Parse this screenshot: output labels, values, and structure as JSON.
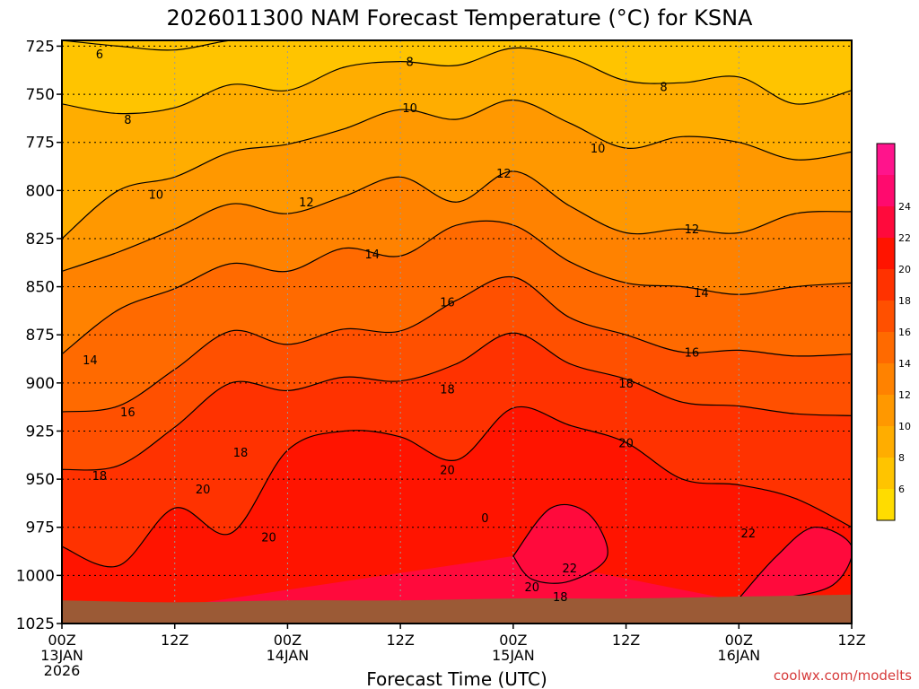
{
  "chart_data": {
    "type": "heatmap",
    "title": "2026011300 NAM Forecast Temperature (°C) for KSNA",
    "xlabel": "Forecast Time (UTC)",
    "ylabel": "",
    "credit": "coolwx.com/modelts",
    "y_ticks": [
      "725",
      "750",
      "775",
      "800",
      "825",
      "850",
      "875",
      "900",
      "925",
      "950",
      "975",
      "1000",
      "1025"
    ],
    "y_values": [
      725,
      750,
      775,
      800,
      825,
      850,
      875,
      900,
      925,
      950,
      975,
      1000,
      1025
    ],
    "ylim": [
      722,
      1025
    ],
    "x_ticks": [
      {
        "hour": 0,
        "line1": "00Z",
        "line2": "13JAN",
        "line3": "2026"
      },
      {
        "hour": 12,
        "line1": "12Z",
        "line2": "",
        "line3": ""
      },
      {
        "hour": 24,
        "line1": "00Z",
        "line2": "14JAN",
        "line3": ""
      },
      {
        "hour": 36,
        "line1": "12Z",
        "line2": "",
        "line3": ""
      },
      {
        "hour": 48,
        "line1": "00Z",
        "line2": "15JAN",
        "line3": ""
      },
      {
        "hour": 60,
        "line1": "12Z",
        "line2": "",
        "line3": ""
      },
      {
        "hour": 72,
        "line1": "00Z",
        "line2": "16JAN",
        "line3": ""
      },
      {
        "hour": 84,
        "line1": "12Z",
        "line2": "",
        "line3": ""
      }
    ],
    "xlim": [
      0,
      84
    ],
    "colorbar": {
      "levels": [
        4,
        6,
        8,
        10,
        12,
        14,
        16,
        18,
        20,
        22,
        24,
        26
      ],
      "labels": [
        "6",
        "8",
        "10",
        "12",
        "14",
        "16",
        "18",
        "20",
        "22",
        "24"
      ],
      "colors": [
        "#ffdc00",
        "#ffc400",
        "#ffad00",
        "#ff9800",
        "#ff8200",
        "#ff6a00",
        "#ff5000",
        "#ff3200",
        "#ff1400",
        "#ff0a3c",
        "#ff0a6e"
      ],
      "top_color": "#ff148c"
    },
    "series": [
      {
        "name": "6",
        "hours": [
          0,
          6,
          12,
          18,
          24,
          30,
          36,
          42,
          48,
          54,
          60,
          66,
          72,
          78,
          84
        ],
        "pressure": [
          722,
          725,
          727,
          722,
          721,
          720,
          721,
          720,
          720,
          721,
          721,
          721,
          721,
          720,
          722
        ]
      },
      {
        "name": "8",
        "hours": [
          0,
          6,
          12,
          18,
          24,
          30,
          36,
          42,
          48,
          54,
          60,
          66,
          72,
          78,
          84
        ],
        "pressure": [
          755,
          760,
          757,
          745,
          748,
          736,
          733,
          735,
          726,
          731,
          743,
          744,
          741,
          755,
          748
        ]
      },
      {
        "name": "10",
        "hours": [
          0,
          6,
          12,
          18,
          24,
          30,
          36,
          42,
          48,
          54,
          60,
          66,
          72,
          78,
          84
        ],
        "pressure": [
          825,
          800,
          793,
          780,
          776,
          768,
          758,
          763,
          753,
          765,
          778,
          772,
          775,
          784,
          780
        ]
      },
      {
        "name": "12",
        "hours": [
          0,
          6,
          12,
          18,
          24,
          30,
          36,
          42,
          48,
          54,
          60,
          66,
          72,
          78,
          84
        ],
        "pressure": [
          842,
          832,
          820,
          807,
          812,
          803,
          793,
          806,
          790,
          808,
          822,
          820,
          822,
          812,
          811
        ]
      },
      {
        "name": "14",
        "hours": [
          0,
          6,
          12,
          18,
          24,
          30,
          36,
          42,
          48,
          54,
          60,
          66,
          72,
          78,
          84
        ],
        "pressure": [
          885,
          862,
          851,
          838,
          842,
          830,
          834,
          818,
          818,
          837,
          848,
          850,
          854,
          850,
          848
        ]
      },
      {
        "name": "16",
        "hours": [
          0,
          6,
          12,
          18,
          24,
          30,
          36,
          42,
          48,
          54,
          60,
          66,
          72,
          78,
          84
        ],
        "pressure": [
          915,
          912,
          893,
          873,
          880,
          872,
          873,
          857,
          845,
          866,
          875,
          884,
          883,
          886,
          885
        ]
      },
      {
        "name": "18",
        "hours": [
          0,
          6,
          12,
          18,
          24,
          30,
          36,
          42,
          48,
          54,
          60,
          66,
          72,
          78,
          84
        ],
        "pressure": [
          945,
          943,
          923,
          900,
          904,
          897,
          899,
          890,
          874,
          890,
          898,
          910,
          912,
          916,
          917
        ]
      },
      {
        "name": "20",
        "hours": [
          0,
          6,
          12,
          18,
          24,
          30,
          36,
          42,
          48,
          54,
          60,
          66,
          72,
          78,
          84
        ],
        "pressure": [
          985,
          995,
          965,
          978,
          935,
          925,
          928,
          940,
          913,
          922,
          931,
          950,
          953,
          960,
          975
        ]
      },
      {
        "name": "22",
        "hours": [
          48,
          52,
          56,
          58,
          54,
          50,
          48
        ],
        "pressure": [
          990,
          965,
          968,
          990,
          1003,
          1002,
          990
        ]
      },
      {
        "name": "22b",
        "hours": [
          72,
          76,
          80,
          84,
          82,
          76,
          72
        ],
        "pressure": [
          1012,
          990,
          975,
          985,
          1005,
          1012,
          1012
        ]
      }
    ],
    "contour_labels": [
      {
        "text": "6",
        "hour": 4,
        "pressure": 729
      },
      {
        "text": "8",
        "hour": 37,
        "pressure": 733
      },
      {
        "text": "8",
        "hour": 64,
        "pressure": 746
      },
      {
        "text": "8",
        "hour": 7,
        "pressure": 763
      },
      {
        "text": "10",
        "hour": 37,
        "pressure": 757
      },
      {
        "text": "10",
        "hour": 57,
        "pressure": 778
      },
      {
        "text": "12",
        "hour": 47,
        "pressure": 791
      },
      {
        "text": "10",
        "hour": 10,
        "pressure": 802
      },
      {
        "text": "12",
        "hour": 26,
        "pressure": 806
      },
      {
        "text": "12",
        "hour": 67,
        "pressure": 820
      },
      {
        "text": "14",
        "hour": 33,
        "pressure": 833
      },
      {
        "text": "14",
        "hour": 68,
        "pressure": 853
      },
      {
        "text": "16",
        "hour": 41,
        "pressure": 858
      },
      {
        "text": "14",
        "hour": 3,
        "pressure": 888
      },
      {
        "text": "16",
        "hour": 67,
        "pressure": 884
      },
      {
        "text": "18",
        "hour": 41,
        "pressure": 903
      },
      {
        "text": "18",
        "hour": 60,
        "pressure": 900
      },
      {
        "text": "16",
        "hour": 7,
        "pressure": 915
      },
      {
        "text": "18",
        "hour": 19,
        "pressure": 936
      },
      {
        "text": "20",
        "hour": 60,
        "pressure": 931
      },
      {
        "text": "20",
        "hour": 41,
        "pressure": 945
      },
      {
        "text": "18",
        "hour": 4,
        "pressure": 948
      },
      {
        "text": "20",
        "hour": 15,
        "pressure": 955
      },
      {
        "text": "20",
        "hour": 22,
        "pressure": 980
      },
      {
        "text": "22",
        "hour": 73,
        "pressure": 978
      },
      {
        "text": "0",
        "hour": 45,
        "pressure": 970
      },
      {
        "text": "22",
        "hour": 54,
        "pressure": 996
      },
      {
        "text": "20",
        "hour": 50,
        "pressure": 1006
      },
      {
        "text": "18",
        "hour": 53,
        "pressure": 1011
      }
    ]
  }
}
